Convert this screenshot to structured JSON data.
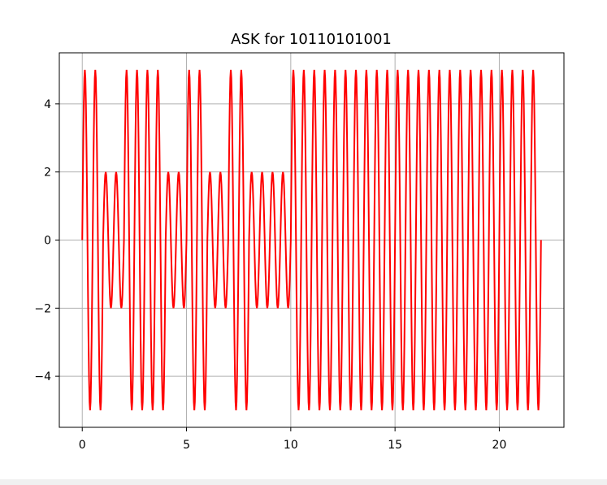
{
  "chart_data": {
    "type": "line",
    "title": "ASK for 10110101001",
    "xlabel": "",
    "ylabel": "",
    "xlim": [
      -1.1,
      23.1
    ],
    "ylim": [
      -5.5,
      5.5
    ],
    "xticks": [
      0,
      5,
      10,
      15,
      20
    ],
    "yticks": [
      4,
      2,
      0,
      -2,
      -4
    ],
    "xtick_labels": [
      "0",
      "5",
      "10",
      "15",
      "20"
    ],
    "ytick_labels": [
      "4",
      "2",
      "0",
      "−2",
      "−4"
    ],
    "grid": true,
    "line_color": "#ff0000",
    "grid_color": "#b0b0b0",
    "series": [
      {
        "bits": [
          1,
          0,
          1,
          1,
          0,
          1,
          0,
          1,
          0,
          0,
          1
        ],
        "amplitude_high": 5,
        "amplitude_low": 2,
        "cycles_per_bit": 2,
        "samples_per_bit": 80,
        "x_step": 0.025,
        "y": []
      }
    ]
  }
}
